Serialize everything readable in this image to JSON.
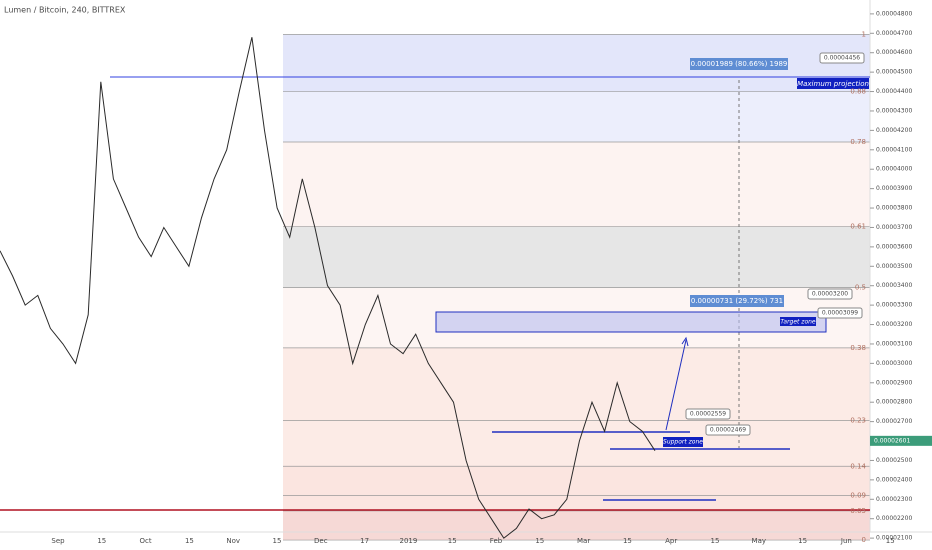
{
  "chart_data": {
    "type": "line",
    "title": "Lumen / Bitcoin, 240, BITTREX",
    "color": "#2a2a2a",
    "values": [
      3.58e-05,
      3.45e-05,
      3.3e-05,
      3.35e-05,
      3.18e-05,
      3.1e-05,
      3e-05,
      3.25e-05,
      4.45e-05,
      3.95e-05,
      3.8e-05,
      3.65e-05,
      3.55e-05,
      3.7e-05,
      3.6e-05,
      3.5e-05,
      3.75e-05,
      3.95e-05,
      4.1e-05,
      4.4e-05,
      4.68e-05,
      4.2e-05,
      3.8e-05,
      3.65e-05,
      3.95e-05,
      3.7e-05,
      3.4e-05,
      3.3e-05,
      3e-05,
      3.2e-05,
      3.35e-05,
      3.1e-05,
      3.05e-05,
      3.15e-05,
      3e-05,
      2.9e-05,
      2.8e-05,
      2.5e-05,
      2.3e-05,
      2.2e-05,
      2.1e-05,
      2.15e-05,
      2.25e-05,
      2.2e-05,
      2.22e-05,
      2.3e-05,
      2.6e-05,
      2.8e-05,
      2.65e-05,
      2.9e-05,
      2.7e-05,
      2.65e-05,
      2.55e-05
    ],
    "ylim": [
      2.08e-05,
      4.82e-05
    ],
    "yticks": [
      {
        "value": 2.1e-05,
        "label": "0.00002100"
      },
      {
        "value": 2.2e-05,
        "label": "0.00002200"
      },
      {
        "value": 2.3e-05,
        "label": "0.00002300"
      },
      {
        "value": 2.4e-05,
        "label": "0.00002400"
      },
      {
        "value": 2.5e-05,
        "label": "0.00002500"
      },
      {
        "value": 2.6e-05,
        "label": "0.00002600"
      },
      {
        "value": 2.7e-05,
        "label": "0.00002700"
      },
      {
        "value": 2.8e-05,
        "label": "0.00002800"
      },
      {
        "value": 2.9e-05,
        "label": "0.00002900"
      },
      {
        "value": 3e-05,
        "label": "0.00003000"
      },
      {
        "value": 3.1e-05,
        "label": "0.00003100"
      },
      {
        "value": 3.2e-05,
        "label": "0.00003200"
      },
      {
        "value": 3.3e-05,
        "label": "0.00003300"
      },
      {
        "value": 3.4e-05,
        "label": "0.00003400"
      },
      {
        "value": 3.5e-05,
        "label": "0.00003500"
      },
      {
        "value": 3.6e-05,
        "label": "0.00003600"
      },
      {
        "value": 3.7e-05,
        "label": "0.00003700"
      },
      {
        "value": 3.8e-05,
        "label": "0.00003800"
      },
      {
        "value": 3.9e-05,
        "label": "0.00003900"
      },
      {
        "value": 4e-05,
        "label": "0.00004000"
      },
      {
        "value": 4.1e-05,
        "label": "0.00004100"
      },
      {
        "value": 4.2e-05,
        "label": "0.00004200"
      },
      {
        "value": 4.3e-05,
        "label": "0.00004300"
      },
      {
        "value": 4.4e-05,
        "label": "0.00004400"
      },
      {
        "value": 4.5e-05,
        "label": "0.00004500"
      },
      {
        "value": 4.6e-05,
        "label": "0.00004600"
      },
      {
        "value": 4.7e-05,
        "label": "0.00004700"
      },
      {
        "value": 4.8e-05,
        "label": "0.00004800"
      }
    ],
    "xtick_labels": [
      "Sep",
      "15",
      "Oct",
      "15",
      "Nov",
      "15",
      "Dec",
      "17",
      "2019",
      "15",
      "Feb",
      "15",
      "Mar",
      "15",
      "Apr",
      "15",
      "May",
      "15",
      "Jun",
      "15"
    ],
    "fib_levels": [
      {
        "label": "1",
        "price": 4.694e-05,
        "color": "#e3e6fa"
      },
      {
        "label": "0.88",
        "price": 4.4e-05,
        "color": "#eceefc"
      },
      {
        "label": "0.78",
        "price": 4.14e-05,
        "color": "#fdf3f1"
      },
      {
        "label": "0.61",
        "price": 3.704e-05,
        "color": "#e6e6e6"
      },
      {
        "label": "0.5",
        "price": 3.39e-05,
        "color": "#fdf5f3"
      },
      {
        "label": "0.38",
        "price": 3.08e-05,
        "color": "#fcebe6"
      },
      {
        "label": "0.23",
        "price": 2.705e-05,
        "color": "#fcebe6"
      },
      {
        "label": "0.14",
        "price": 2.47e-05,
        "color": "#fbe5e0"
      },
      {
        "label": "0.09",
        "price": 2.32e-05,
        "color": "#fbe5e0"
      },
      {
        "label": "0.05",
        "price": 2.24e-05,
        "color": "#f6d9d6"
      },
      {
        "label": "0",
        "price": 2.09e-05,
        "color": "#eceefc"
      }
    ],
    "current_price": {
      "value": 2.601e-05,
      "label": "0.00002601"
    },
    "annotations": {
      "projection": "0.00001989 (80.66%) 1989",
      "projection_price": "0.00004456",
      "maximum": "Maximum projection",
      "target_move": "0.00000731 (29.72%) 731",
      "target_top": "0.00003200",
      "target_bottom": "0.00003099",
      "target": "Target zone",
      "support_top": "0.00002559",
      "support_bottom": "0.00002469",
      "support": "Support zone"
    }
  }
}
